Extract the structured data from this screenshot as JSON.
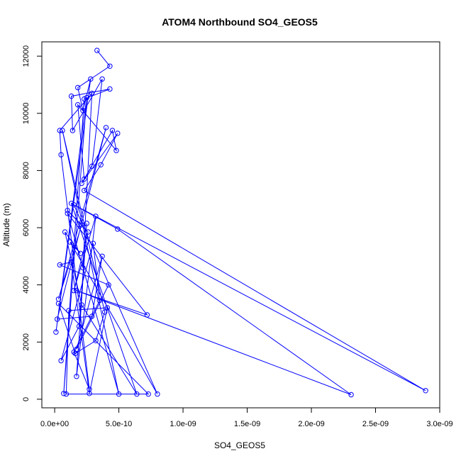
{
  "chart_data": {
    "type": "scatter",
    "title": "ATOM4 Northbound SO4_GEOS5",
    "xlabel": "SO4_GEOS5",
    "ylabel": "Altitude (m)",
    "xlim": [
      -1e-10,
      3e-09
    ],
    "ylim": [
      -300,
      12500
    ],
    "xticks": [
      0,
      5e-10,
      1e-09,
      1.5e-09,
      2e-09,
      2.5e-09,
      3e-09
    ],
    "xtick_labels": [
      "0.0e+00",
      "5.0e-10",
      "1.0e-09",
      "1.5e-09",
      "2.0e-09",
      "2.5e-09",
      "3.0e-09"
    ],
    "yticks": [
      0,
      2000,
      4000,
      6000,
      8000,
      10000,
      12000
    ],
    "ytick_labels": [
      "0",
      "2000",
      "4000",
      "6000",
      "8000",
      "10000",
      "12000"
    ],
    "color": "#0000ff",
    "mode": "lines+markers",
    "series": [
      {
        "x": [
          3.3e-10,
          4.3e-10,
          1.8e-10,
          2.2e-10,
          2.8e-10,
          1e-11,
          2.5e-10,
          7e-11,
          2.3e-10,
          4.3e-10,
          1.3e-10,
          1.4e-10,
          3.7e-10,
          2.9e-10,
          2.3e-10,
          1.8e-10,
          4.8e-10,
          4.5e-10,
          2.1e-10,
          4.9e-10,
          3.6e-10,
          2.3e-10,
          2.89e-09,
          1.5e-10,
          8e-10,
          1.2e-10,
          2e-10,
          8e-11,
          2.1e-10,
          6.4e-10,
          1.3e-10,
          4.9e-10,
          2.31e-09,
          1.7e-10,
          7.2e-10,
          1e-10,
          5e-10,
          6e-11,
          3.9e-10,
          3.2e-10,
          1.6e-10,
          3e-11,
          7.3e-10,
          9e-11,
          1.1e-10,
          4.1e-10,
          2.7e-10,
          1.3e-10,
          4e-11,
          4.2e-10,
          1.7e-10,
          3.7e-10,
          2.9e-10,
          2e-11,
          4e-10,
          3e-11,
          2.1e-10,
          1e-10,
          2.6e-10,
          1.5e-10,
          3.2e-10,
          1.7e-10,
          2.5e-10,
          1.9e-10,
          5e-11,
          3e-10,
          3.5e-10,
          1.5e-10,
          2.7e-10,
          5e-11,
          4e-11,
          2.9e-10,
          2.2e-10
        ],
        "y": [
          12200,
          11650,
          10900,
          10100,
          11200,
          2350,
          10550,
          200,
          10500,
          10850,
          10600,
          9400,
          11200,
          8150,
          7700,
          10300,
          8700,
          9400,
          7550,
          9300,
          8200,
          7300,
          300,
          6800,
          180,
          5500,
          5100,
          5850,
          3300,
          180,
          6850,
          5950,
          160,
          3800,
          2950,
          6500,
          180,
          9400,
          3050,
          2050,
          1600,
          3350,
          180,
          180,
          3100,
          3200,
          200,
          4800,
          4700,
          4000,
          1750,
          5000,
          2900,
          2800,
          9500,
          3500,
          6100,
          6600,
          5850,
          3800,
          6400,
          800,
          6150,
          2550,
          1350,
          5450,
          3450,
          1650,
          350,
          8550,
          9400,
          10700,
          4600
        ]
      }
    ]
  }
}
